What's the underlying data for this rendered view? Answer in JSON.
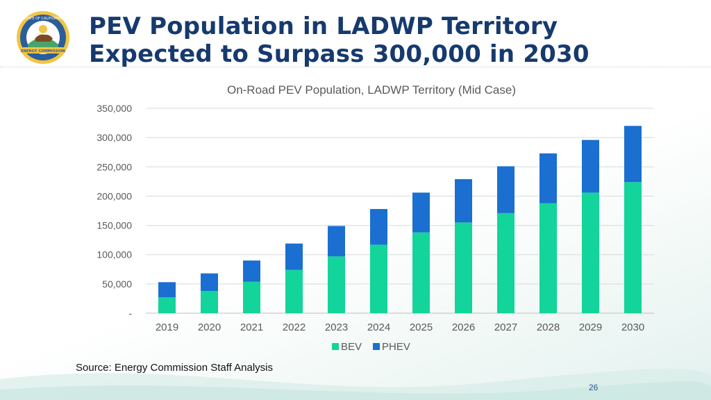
{
  "slide": {
    "title_line1": "PEV Population in LADWP Territory",
    "title_line2": "Expected to Surpass 300,000 in 2030",
    "source": "Source: Energy Commission Staff Analysis",
    "page_number": "26",
    "logo_text": "STATE OF CALIFORNIA",
    "logo_banner": "ENERGY COMMISSION"
  },
  "colors": {
    "title": "#163a6e",
    "bev": "#13d49a",
    "phev": "#1a6fd1",
    "gridline": "#d9d9d9",
    "axis_text": "#595959"
  },
  "chart_data": {
    "type": "bar",
    "stacked": true,
    "title": "On-Road PEV Population, LADWP Territory (Mid Case)",
    "categories": [
      "2019",
      "2020",
      "2021",
      "2022",
      "2023",
      "2024",
      "2025",
      "2026",
      "2027",
      "2028",
      "2029",
      "2030"
    ],
    "series": [
      {
        "name": "BEV",
        "values": [
          27000,
          38000,
          54000,
          74000,
          97000,
          117000,
          138000,
          155000,
          171000,
          188000,
          206000,
          224000
        ]
      },
      {
        "name": "PHEV",
        "values": [
          26000,
          30000,
          36000,
          45000,
          52000,
          61000,
          68000,
          74000,
          80000,
          85000,
          90000,
          96000
        ]
      }
    ],
    "ylim": [
      0,
      350000
    ],
    "yticks": [
      0,
      50000,
      100000,
      150000,
      200000,
      250000,
      300000,
      350000
    ],
    "ytick_labels": [
      "-",
      "50,000",
      "100,000",
      "150,000",
      "200,000",
      "250,000",
      "300,000",
      "350,000"
    ],
    "grid": true,
    "legend": [
      "BEV",
      "PHEV"
    ],
    "legend_position": "bottom"
  }
}
